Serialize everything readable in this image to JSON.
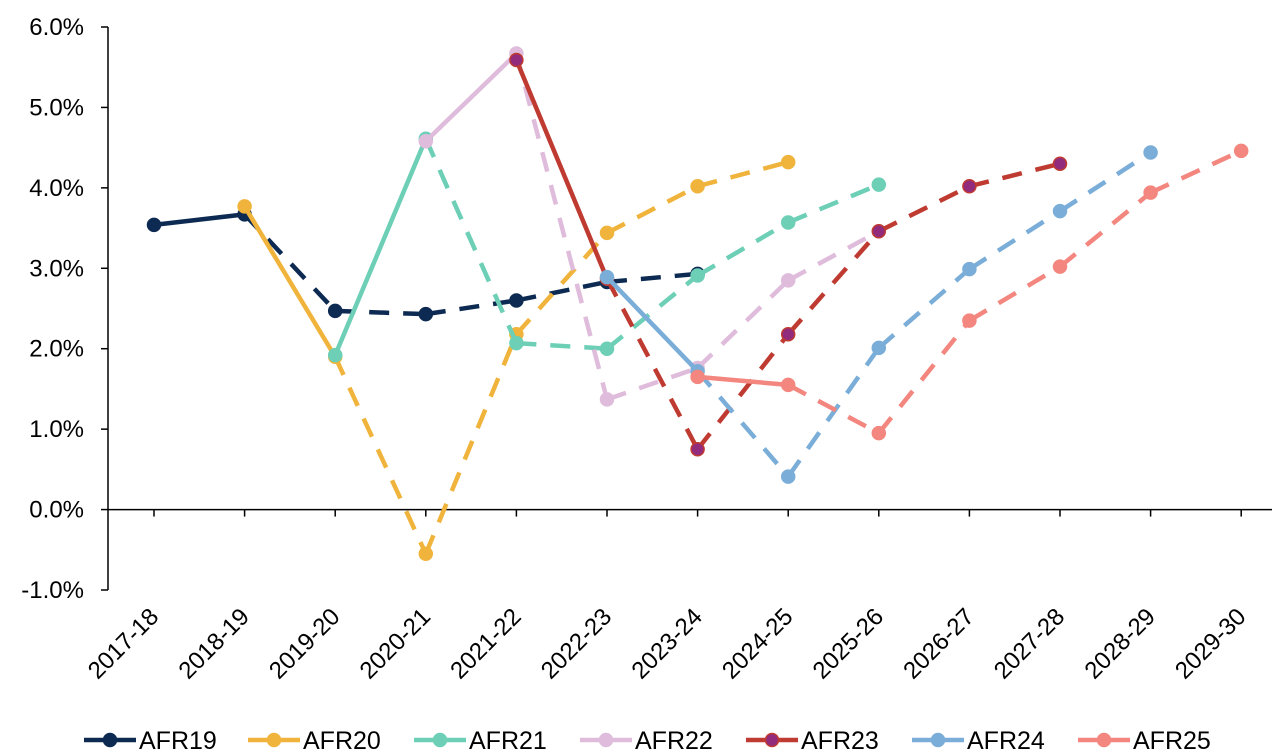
{
  "chart_data": {
    "type": "line",
    "title": "",
    "xlabel": "",
    "ylabel": "",
    "categories": [
      "2017-18",
      "2018-19",
      "2019-20",
      "2020-21",
      "2021-22",
      "2022-23",
      "2023-24",
      "2024-25",
      "2025-26",
      "2026-27",
      "2027-28",
      "2028-29",
      "2029-30"
    ],
    "y_ticks": [
      "6.0%",
      "5.0%",
      "4.0%",
      "3.0%",
      "2.0%",
      "1.0%",
      "0.0%",
      "-1.0%"
    ],
    "ylim": [
      -1.0,
      6.0
    ],
    "y_tick_values": [
      6,
      5,
      4,
      3,
      2,
      1,
      0,
      -1
    ],
    "grid": false,
    "legend_position": "bottom",
    "series": [
      {
        "name": "AFR19",
        "color": "#0d2a52",
        "marker_fill": "#0d2a52",
        "solid_until": 1,
        "values": [
          3.54,
          3.67,
          2.47,
          2.43,
          2.6,
          2.83,
          2.93,
          null,
          null,
          null,
          null,
          null,
          null
        ]
      },
      {
        "name": "AFR20",
        "color": "#f0b43c",
        "marker_fill": "#f0b43c",
        "solid_until": 2,
        "values": [
          null,
          3.77,
          1.9,
          -0.55,
          2.18,
          3.44,
          4.02,
          4.32,
          null,
          null,
          null,
          null,
          null
        ]
      },
      {
        "name": "AFR21",
        "color": "#6ccfb6",
        "marker_fill": "#6ccfb6",
        "solid_until": 3,
        "values": [
          null,
          null,
          1.92,
          4.61,
          2.07,
          2.0,
          2.91,
          3.57,
          4.04,
          null,
          null,
          null,
          null
        ]
      },
      {
        "name": "AFR22",
        "color": "#dfbcdb",
        "marker_fill": "#dfbcdb",
        "solid_until": 4,
        "values": [
          null,
          null,
          null,
          4.58,
          5.67,
          1.37,
          1.76,
          2.85,
          3.46,
          null,
          null,
          null,
          null
        ]
      },
      {
        "name": "AFR23",
        "color": "#bf3a30",
        "marker_fill": "#922b7c",
        "solid_until": 5,
        "values": [
          null,
          null,
          null,
          null,
          5.59,
          2.87,
          0.75,
          2.18,
          3.46,
          4.02,
          4.3,
          null,
          null
        ]
      },
      {
        "name": "AFR24",
        "color": "#7aaed8",
        "marker_fill": "#7aaed8",
        "solid_until": 6,
        "values": [
          null,
          null,
          null,
          null,
          null,
          2.89,
          1.72,
          0.41,
          2.01,
          2.99,
          3.71,
          4.44,
          null
        ]
      },
      {
        "name": "AFR25",
        "color": "#f3867e",
        "marker_fill": "#f3867e",
        "solid_until": 7,
        "values": [
          null,
          null,
          null,
          null,
          null,
          null,
          1.65,
          1.55,
          0.95,
          2.35,
          3.02,
          3.94,
          4.46
        ]
      }
    ]
  }
}
